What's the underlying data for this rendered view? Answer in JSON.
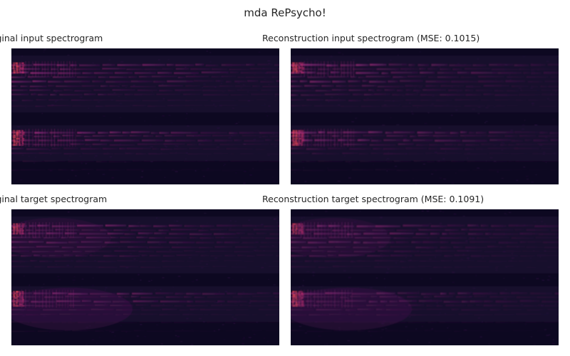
{
  "figure": {
    "title": "mda RePsycho!"
  },
  "chart_data": [
    {
      "type": "heatmap",
      "title": "Original input spectrogram",
      "colormap": "magma",
      "axes": "off"
    },
    {
      "type": "heatmap",
      "title": "Reconstruction input spectrogram (MSE: 0.1015)",
      "colormap": "magma",
      "axes": "off"
    },
    {
      "type": "heatmap",
      "title": "Original target spectrogram",
      "colormap": "magma",
      "axes": "off"
    },
    {
      "type": "heatmap",
      "title": "Reconstruction target spectrogram (MSE: 0.1091)",
      "colormap": "magma",
      "axes": "off"
    }
  ],
  "colors": {
    "background": "#ffffff",
    "text": "#262626",
    "colormap_low": "#0d0821",
    "colormap_mid": "#6e1f6e",
    "colormap_high": "#e8345a"
  }
}
